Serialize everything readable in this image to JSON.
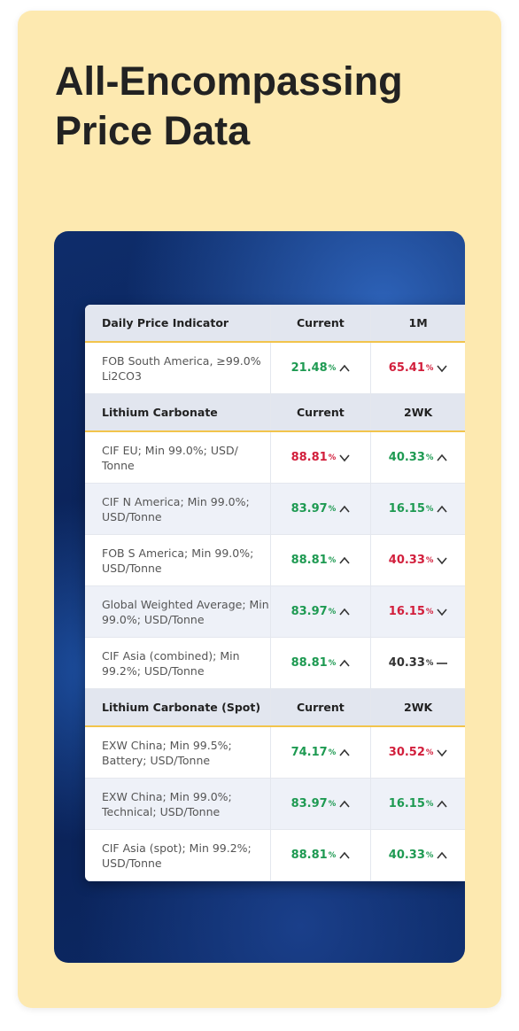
{
  "title": [
    "All-Encompassing",
    "Price Data"
  ],
  "sections": [
    {
      "header": [
        "Daily Price Indicator",
        "Current",
        "1M"
      ],
      "rows": [
        {
          "label": "FOB South America, ≥99.0% Li2CO3",
          "cells": [
            {
              "value": "21.48",
              "unit": "%",
              "trend": "up"
            },
            {
              "value": "65.41",
              "unit": "%",
              "trend": "down"
            }
          ]
        }
      ]
    },
    {
      "header": [
        "Lithium Carbonate",
        "Current",
        "2WK"
      ],
      "rows": [
        {
          "label": "CIF EU; Min 99.0%; USD/ Tonne",
          "cells": [
            {
              "value": "88.81",
              "unit": "%",
              "trend": "down"
            },
            {
              "value": "40.33",
              "unit": "%",
              "trend": "up"
            }
          ]
        },
        {
          "label": "CIF N America; Min 99.0%; USD/Tonne",
          "cells": [
            {
              "value": "83.97",
              "unit": "%",
              "trend": "up"
            },
            {
              "value": "16.15",
              "unit": "%",
              "trend": "up"
            }
          ]
        },
        {
          "label": "FOB S America; Min 99.0%; USD/Tonne",
          "cells": [
            {
              "value": "88.81",
              "unit": "%",
              "trend": "up"
            },
            {
              "value": "40.33",
              "unit": "%",
              "trend": "down"
            }
          ]
        },
        {
          "label": "Global Weighted Average; Min 99.0%; USD/Tonne",
          "cells": [
            {
              "value": "83.97",
              "unit": "%",
              "trend": "up"
            },
            {
              "value": "16.15",
              "unit": "%",
              "trend": "down"
            }
          ]
        },
        {
          "label": "CIF Asia (combined); Min 99.2%; USD/Tonne",
          "cells": [
            {
              "value": "88.81",
              "unit": "%",
              "trend": "up"
            },
            {
              "value": "40.33",
              "unit": "%",
              "trend": "flat"
            }
          ]
        }
      ]
    },
    {
      "header": [
        "Lithium Carbonate (Spot)",
        "Current",
        "2WK"
      ],
      "rows": [
        {
          "label": "EXW China; Min 99.5%; Battery; USD/Tonne",
          "cells": [
            {
              "value": "74.17",
              "unit": "%",
              "trend": "up"
            },
            {
              "value": "30.52",
              "unit": "%",
              "trend": "down"
            }
          ]
        },
        {
          "label": "EXW China; Min 99.0%; Technical; USD/Tonne",
          "cells": [
            {
              "value": "83.97",
              "unit": "%",
              "trend": "up"
            },
            {
              "value": "16.15",
              "unit": "%",
              "trend": "up"
            }
          ]
        },
        {
          "label": "CIF Asia (spot); Min 99.2%; USD/Tonne",
          "cells": [
            {
              "value": "88.81",
              "unit": "%",
              "trend": "up"
            },
            {
              "value": "40.33",
              "unit": "%",
              "trend": "up"
            }
          ]
        }
      ]
    }
  ]
}
